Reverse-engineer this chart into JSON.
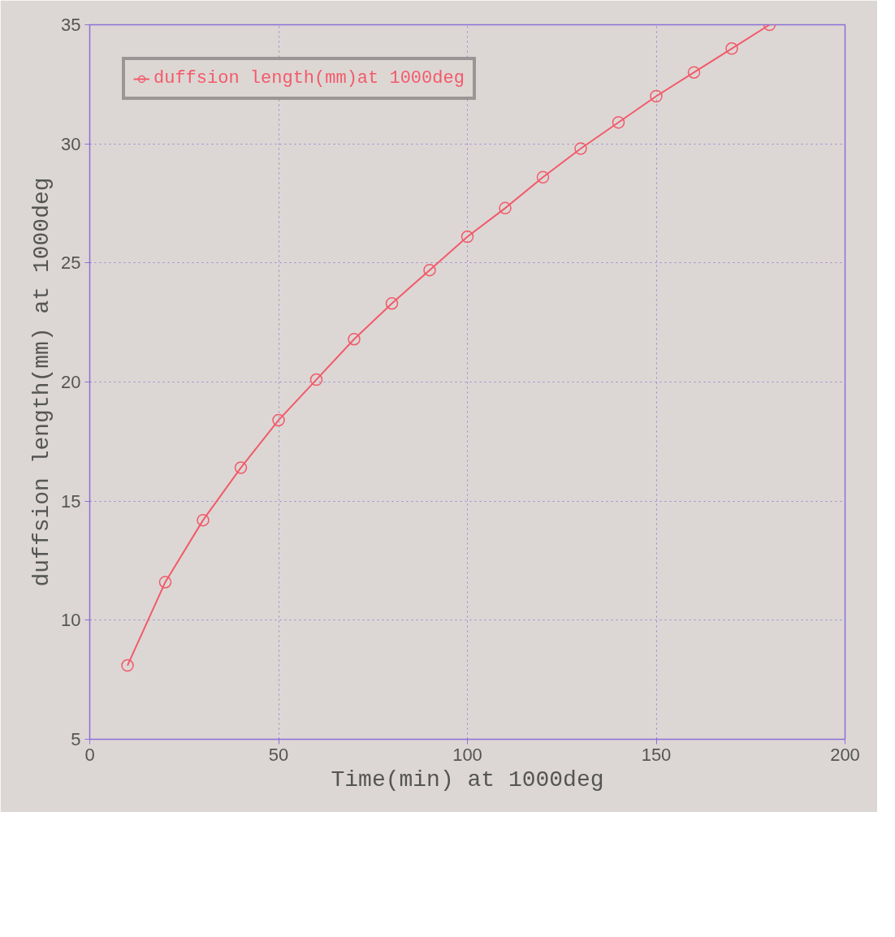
{
  "chart_data": {
    "type": "line",
    "xlabel": "Time(min) at 1000deg",
    "ylabel": "duffsion length(mm) at 1000deg",
    "x": [
      10,
      20,
      30,
      40,
      50,
      60,
      70,
      80,
      90,
      100,
      110,
      120,
      130,
      140,
      150,
      160,
      170,
      180
    ],
    "series": [
      {
        "name": "duffsion length(mm)at 1000deg",
        "color": "#f25a6a",
        "values": [
          8.1,
          11.6,
          14.2,
          16.4,
          18.4,
          20.1,
          21.8,
          23.3,
          24.7,
          26.1,
          27.3,
          28.6,
          29.8,
          30.9,
          32.0,
          33.0,
          34.0,
          35.0
        ]
      }
    ],
    "xlim": [
      0,
      200
    ],
    "xticks": [
      0,
      50,
      100,
      150,
      200
    ],
    "ylim": [
      5,
      35
    ],
    "yticks": [
      5,
      10,
      15,
      20,
      25,
      30,
      35
    ],
    "grid": true,
    "legend": "top left",
    "marker": "circle",
    "line_style": "solid"
  }
}
